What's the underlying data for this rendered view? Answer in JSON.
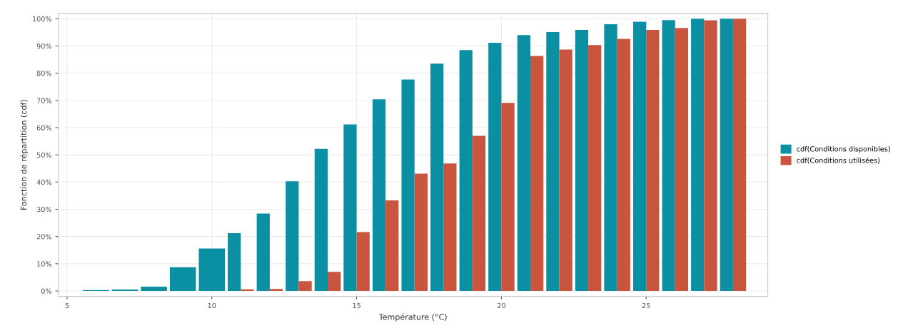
{
  "chart_data": {
    "type": "bar",
    "xlabel": "Température (°C)",
    "ylabel": "Fonction de répartition (cdf)",
    "x": [
      6,
      7,
      8,
      9,
      10,
      11,
      12,
      13,
      14,
      15,
      16,
      17,
      18,
      19,
      20,
      21,
      22,
      23,
      24,
      25,
      26,
      27,
      28
    ],
    "series": [
      {
        "name": "cdf(Conditions disponibles)",
        "color": "#0b8fa3",
        "values": [
          0.3,
          0.5,
          1.6,
          8.7,
          15.6,
          21.2,
          28.4,
          40.3,
          52.2,
          61.2,
          70.4,
          77.7,
          83.5,
          88.5,
          91.2,
          94.0,
          95.1,
          95.9,
          98.0,
          98.9,
          99.5,
          100,
          100
        ]
      },
      {
        "name": "cdf(Conditions utilisées)",
        "color": "#c9553f",
        "values": [
          null,
          null,
          null,
          null,
          null,
          0.6,
          0.7,
          3.6,
          7.0,
          21.6,
          33.3,
          43.1,
          46.8,
          57.0,
          69.1,
          86.3,
          88.7,
          90.3,
          92.6,
          95.9,
          96.6,
          99.4,
          100
        ]
      }
    ],
    "xlim": [
      4.7,
      29.2
    ],
    "xticks": [
      5,
      10,
      15,
      20,
      25
    ],
    "ylim": [
      -2,
      102
    ],
    "yticks": [
      {
        "value": 0,
        "label": "0%"
      },
      {
        "value": 10,
        "label": "10%"
      },
      {
        "value": 20,
        "label": "20%"
      },
      {
        "value": 30,
        "label": "30%"
      },
      {
        "value": 40,
        "label": "40%"
      },
      {
        "value": 50,
        "label": "50%"
      },
      {
        "value": 60,
        "label": "60%"
      },
      {
        "value": 70,
        "label": "70%"
      },
      {
        "value": 80,
        "label": "80%"
      },
      {
        "value": 90,
        "label": "90%"
      },
      {
        "value": 100,
        "label": "100%"
      }
    ],
    "grid": true,
    "legend": "right"
  }
}
